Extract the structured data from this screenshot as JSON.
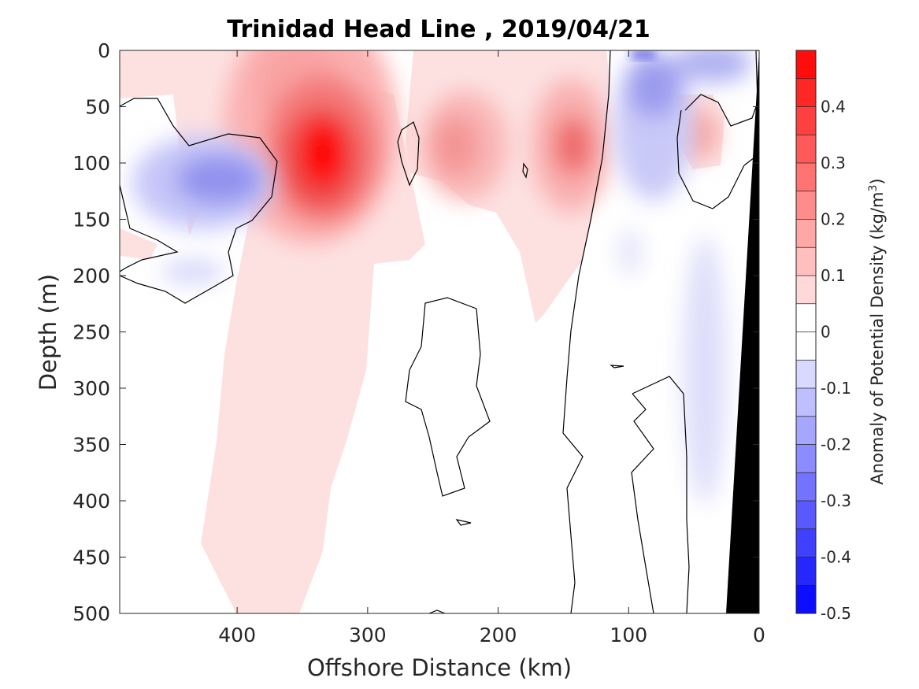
{
  "chart_data": {
    "type": "heatmap",
    "title": "Trinidad Head Line , 2019/04/21",
    "xlabel": "Offshore Distance (km)",
    "ylabel": "Depth (m)",
    "xlim": [
      490,
      0
    ],
    "ylim": [
      500,
      0
    ],
    "x_reversed": true,
    "y_reversed": true,
    "xticks": [
      "400",
      "300",
      "200",
      "100",
      "0"
    ],
    "yticks": [
      "0",
      "50",
      "100",
      "150",
      "200",
      "250",
      "300",
      "350",
      "400",
      "450",
      "500"
    ],
    "colorbar": {
      "label": "Anomaly of Potential Density (kg/m",
      "label_superscript": "3",
      "label_suffix": ")",
      "range": [
        -0.5,
        0.5
      ],
      "step": 0.05,
      "ticks": [
        "0.4",
        "0.3",
        "0.2",
        "0.1",
        "0",
        "-0.1",
        "-0.2",
        "-0.3",
        "-0.4",
        "-0.5"
      ],
      "colormap": "blue-white-red"
    },
    "features": [
      {
        "name": "strong dense core",
        "x": 335,
        "depth": 100,
        "value": 0.45
      },
      {
        "name": "offshore light eddy",
        "x": 420,
        "depth": 110,
        "value": -0.2
      },
      {
        "name": "mid-section dense patch",
        "x": 235,
        "depth": 85,
        "value": 0.2
      },
      {
        "name": "dense patch",
        "x": 140,
        "depth": 85,
        "value": 0.28
      },
      {
        "name": "nearshore light water",
        "x": 90,
        "depth": 40,
        "value": -0.2
      },
      {
        "name": "nearshore dense patch",
        "x": 45,
        "depth": 80,
        "value": 0.15
      }
    ],
    "bathymetry_color": "#000000"
  }
}
